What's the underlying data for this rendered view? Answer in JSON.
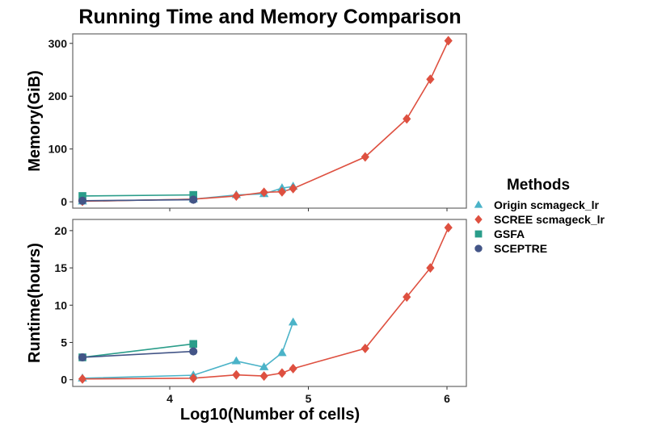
{
  "chart_data": {
    "title": "Running Time and Memory Comparison",
    "type": "line",
    "xlabel": "Log10(Number of cells)",
    "xlim": [
      3.3,
      6.14
    ],
    "xticks": [
      4,
      5,
      6
    ],
    "legend": {
      "title": "Methods",
      "placement": "right"
    },
    "series_meta": [
      {
        "name": "Origin scmageck_lr",
        "color": "#4bb3c8",
        "marker": "triangle"
      },
      {
        "name": "SCREE scmageck_lr",
        "color": "#de5040",
        "marker": "diamond"
      },
      {
        "name": "GSFA",
        "color": "#2a9d8a",
        "marker": "square"
      },
      {
        "name": "SCEPTRE",
        "color": "#435587",
        "marker": "circle"
      }
    ],
    "panels": [
      {
        "ylabel": "Memory(GiB)",
        "ylim": [
          -12,
          318
        ],
        "yticks": [
          0,
          100,
          200,
          300
        ],
        "series": [
          {
            "name": "Origin scmageck_lr",
            "x": [
              3.37,
              4.17,
              4.48,
              4.68,
              4.81,
              4.89
            ],
            "y": [
              1,
              5,
              13,
              15,
              26,
              29
            ]
          },
          {
            "name": "SCREE scmageck_lr",
            "x": [
              3.37,
              4.17,
              4.48,
              4.68,
              4.81,
              4.89,
              5.41,
              5.71,
              5.88,
              6.01
            ],
            "y": [
              1,
              5,
              11,
              18,
              19,
              25,
              85,
              157,
              232,
              305
            ]
          },
          {
            "name": "GSFA",
            "x": [
              3.37,
              4.17
            ],
            "y": [
              11,
              13
            ]
          },
          {
            "name": "SCEPTRE",
            "x": [
              3.37,
              4.17
            ],
            "y": [
              2,
              4
            ]
          }
        ]
      },
      {
        "ylabel": "Runtime(hours)",
        "ylim": [
          -0.9,
          21.5
        ],
        "yticks": [
          0,
          5,
          10,
          15,
          20
        ],
        "series": [
          {
            "name": "Origin scmageck_lr",
            "x": [
              3.37,
              4.17,
              4.48,
              4.68,
              4.81,
              4.89
            ],
            "y": [
              0.2,
              0.6,
              2.5,
              1.7,
              3.6,
              7.7
            ]
          },
          {
            "name": "SCREE scmageck_lr",
            "x": [
              3.37,
              4.17,
              4.48,
              4.68,
              4.81,
              4.89,
              5.41,
              5.71,
              5.88,
              6.01
            ],
            "y": [
              0.1,
              0.2,
              0.65,
              0.5,
              0.9,
              1.5,
              4.2,
              11.1,
              15.0,
              20.4
            ]
          },
          {
            "name": "GSFA",
            "x": [
              3.37,
              4.17
            ],
            "y": [
              3.0,
              4.8
            ]
          },
          {
            "name": "SCEPTRE",
            "x": [
              3.37,
              4.17
            ],
            "y": [
              3.0,
              3.8
            ]
          }
        ]
      }
    ]
  }
}
